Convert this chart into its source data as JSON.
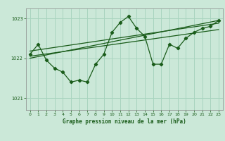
{
  "bg_color": "#cbe8d8",
  "grid_color": "#a8d4bf",
  "line_color": "#1a5c1a",
  "marker_color": "#1a5c1a",
  "xlabel": "Graphe pression niveau de la mer (hPa)",
  "xlim": [
    -0.5,
    23.5
  ],
  "ylim": [
    1020.7,
    1023.25
  ],
  "yticks": [
    1021,
    1022,
    1023
  ],
  "xticks": [
    0,
    1,
    2,
    3,
    4,
    5,
    6,
    7,
    8,
    9,
    10,
    11,
    12,
    13,
    14,
    15,
    16,
    17,
    18,
    19,
    20,
    21,
    22,
    23
  ],
  "data_x": [
    0,
    1,
    2,
    3,
    4,
    5,
    6,
    7,
    8,
    9,
    10,
    11,
    12,
    13,
    14,
    15,
    16,
    17,
    18,
    19,
    20,
    21,
    22,
    23
  ],
  "data_y": [
    1022.1,
    1022.35,
    1021.95,
    1021.75,
    1021.65,
    1021.4,
    1021.45,
    1021.4,
    1021.85,
    1022.1,
    1022.65,
    1022.9,
    1023.05,
    1022.75,
    1022.55,
    1021.85,
    1021.85,
    1022.35,
    1022.25,
    1022.5,
    1022.65,
    1022.75,
    1022.8,
    1022.95
  ],
  "trend1_x": [
    0,
    23
  ],
  "trend1_y": [
    1022.05,
    1022.72
  ],
  "trend2_x": [
    0,
    23
  ],
  "trend2_y": [
    1022.18,
    1022.88
  ],
  "trend3_x": [
    0,
    23
  ],
  "trend3_y": [
    1022.0,
    1022.95
  ]
}
